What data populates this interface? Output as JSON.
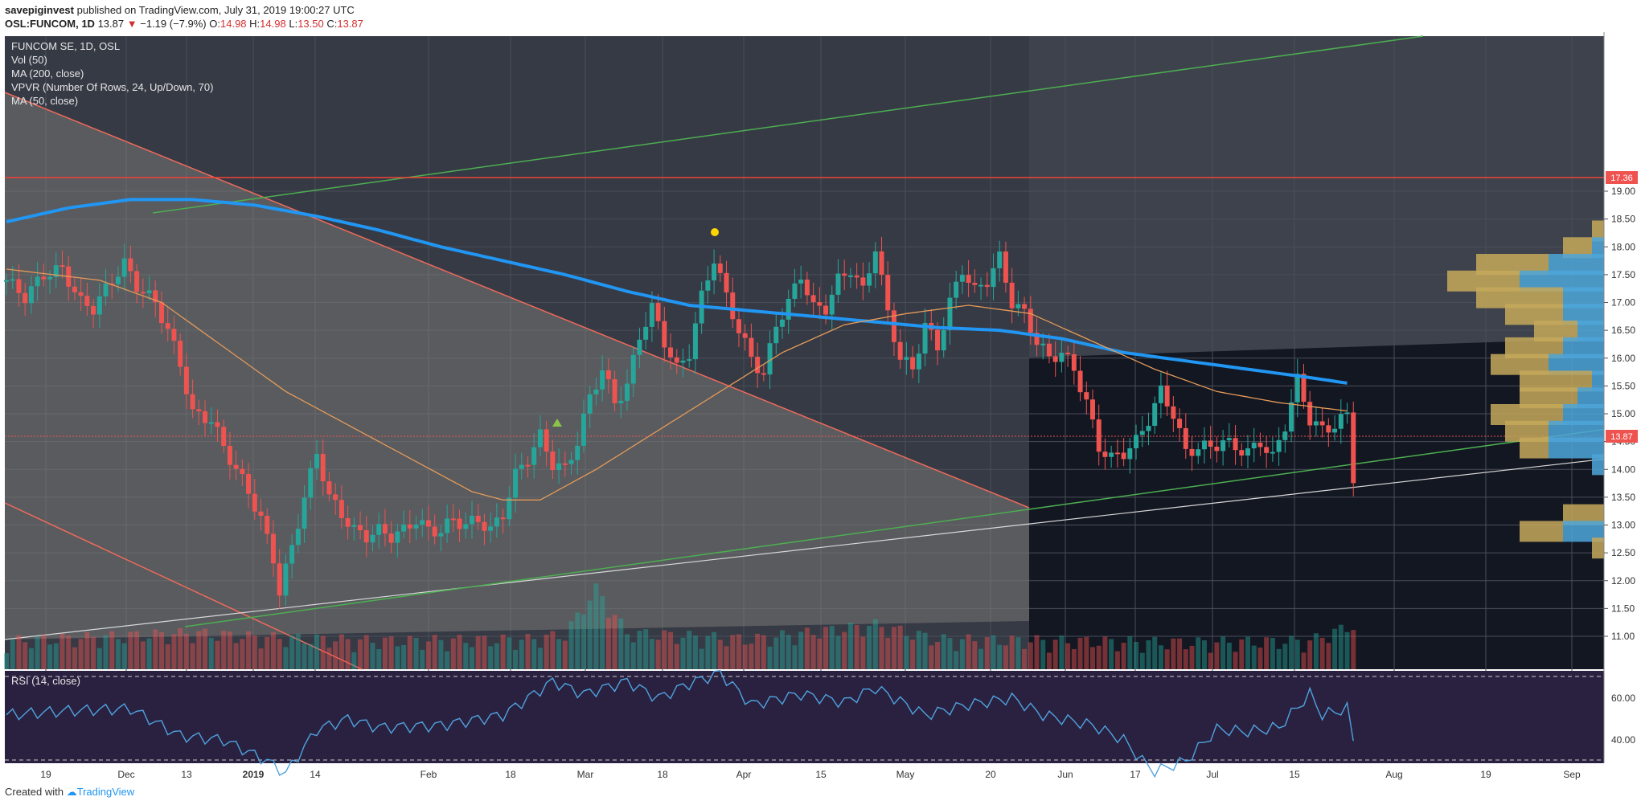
{
  "header": {
    "author": "savepiginvest",
    "published": "published on TradingView.com, July 31, 2019 19:00:27 UTC",
    "symbol": "OSL:FUNCOM, 1D",
    "last": "13.87",
    "change": "−1.19 (−7.9%)",
    "o_label": "O:",
    "o_val": "14.98",
    "h_label": "H:",
    "h_val": "14.98",
    "l_label": "L:",
    "l_val": "13.50",
    "c_label": "C:",
    "c_val": "13.87"
  },
  "legend": [
    "FUNCOM SE, 1D, OSL",
    "Vol (50)",
    "MA (200, close)",
    "VPVR (Number Of Rows, 24, Up/Down, 70)",
    "MA (50, close)"
  ],
  "rsi_label": "RSI (14, close)",
  "footer": {
    "created": "Created with",
    "brand": "TradingView"
  },
  "colors": {
    "background": "#363a45",
    "lower_background": "#131722",
    "rsi_background": "#2a2140",
    "up": "#26a69a",
    "down": "#ef5350",
    "ma200": "#2196f3",
    "ma50": "#e59a58",
    "trend": "#4caf50",
    "resistance": "#f44336",
    "vpvr_up": "#4da6d9",
    "vpvr_down": "#c6a85a"
  },
  "chart_data": {
    "type": "candlestick",
    "price_axis": {
      "ticks": [
        "19.00",
        "18.50",
        "18.00",
        "17.50",
        "17.00",
        "16.50",
        "16.00",
        "15.50",
        "15.00",
        "14.50",
        "14.00",
        "13.50",
        "13.00",
        "12.50",
        "12.00",
        "11.50",
        "11.00"
      ],
      "range": [
        10.75,
        19.3
      ]
    },
    "time_axis": {
      "labels": [
        "19",
        "Dec",
        "13",
        "2019",
        "14",
        "Feb",
        "18",
        "Mar",
        "18",
        "Apr",
        "15",
        "May",
        "20",
        "Jun",
        "17",
        "Jul",
        "15",
        "Aug",
        "19",
        "Sep"
      ]
    },
    "markers": {
      "resistance_level": "17.36",
      "last_price": "13.87"
    },
    "rsi_axis": {
      "ticks": [
        "60.00",
        "40.00"
      ],
      "range": [
        20,
        80
      ],
      "bands": [
        70,
        30
      ]
    },
    "ohlc_waypoints": [
      [
        0,
        17.4
      ],
      [
        3,
        17.1
      ],
      [
        6,
        17.5
      ],
      [
        9,
        17.6
      ],
      [
        12,
        17.0
      ],
      [
        14,
        16.9
      ],
      [
        17,
        17.4
      ],
      [
        19,
        17.7
      ],
      [
        21,
        17.3
      ],
      [
        24,
        17.0
      ],
      [
        26,
        16.5
      ],
      [
        28,
        15.9
      ],
      [
        30,
        15.0
      ],
      [
        33,
        14.9
      ],
      [
        35,
        14.4
      ],
      [
        37,
        14.0
      ],
      [
        39,
        13.6
      ],
      [
        41,
        13.1
      ],
      [
        43,
        12.4
      ],
      [
        44,
        11.8
      ],
      [
        46,
        12.6
      ],
      [
        48,
        13.5
      ],
      [
        50,
        14.3
      ],
      [
        52,
        13.5
      ],
      [
        54,
        13.2
      ],
      [
        56,
        12.9
      ],
      [
        58,
        12.8
      ],
      [
        60,
        12.9
      ],
      [
        62,
        12.8
      ],
      [
        64,
        12.9
      ],
      [
        66,
        13.1
      ],
      [
        68,
        12.9
      ],
      [
        70,
        12.9
      ],
      [
        72,
        13.1
      ],
      [
        74,
        13.0
      ],
      [
        76,
        13.1
      ],
      [
        78,
        12.9
      ],
      [
        80,
        13.2
      ],
      [
        82,
        13.9
      ],
      [
        84,
        14.2
      ],
      [
        86,
        14.6
      ],
      [
        88,
        14.1
      ],
      [
        90,
        14.0
      ],
      [
        92,
        14.5
      ],
      [
        94,
        15.3
      ],
      [
        96,
        15.8
      ],
      [
        98,
        15.2
      ],
      [
        100,
        15.5
      ],
      [
        102,
        16.4
      ],
      [
        104,
        16.9
      ],
      [
        106,
        16.3
      ],
      [
        108,
        15.8
      ],
      [
        110,
        16.1
      ],
      [
        112,
        17.1
      ],
      [
        114,
        17.8
      ],
      [
        116,
        17.1
      ],
      [
        118,
        16.5
      ],
      [
        120,
        16.0
      ],
      [
        122,
        15.7
      ],
      [
        124,
        16.6
      ],
      [
        126,
        17.0
      ],
      [
        128,
        17.5
      ],
      [
        130,
        16.9
      ],
      [
        132,
        16.9
      ],
      [
        134,
        17.4
      ],
      [
        136,
        17.6
      ],
      [
        138,
        17.2
      ],
      [
        140,
        18.0
      ],
      [
        142,
        16.8
      ],
      [
        144,
        16.0
      ],
      [
        146,
        15.8
      ],
      [
        148,
        16.6
      ],
      [
        150,
        16.2
      ],
      [
        152,
        17.0
      ],
      [
        154,
        17.6
      ],
      [
        156,
        17.2
      ],
      [
        158,
        17.4
      ],
      [
        160,
        17.8
      ],
      [
        162,
        17.0
      ],
      [
        164,
        16.8
      ],
      [
        166,
        16.3
      ],
      [
        168,
        16.0
      ],
      [
        170,
        16.1
      ],
      [
        172,
        15.8
      ],
      [
        174,
        15.2
      ],
      [
        176,
        14.4
      ],
      [
        178,
        14.2
      ],
      [
        180,
        14.3
      ],
      [
        182,
        14.5
      ],
      [
        184,
        14.9
      ],
      [
        186,
        15.4
      ],
      [
        188,
        15.0
      ],
      [
        190,
        14.3
      ],
      [
        192,
        14.4
      ],
      [
        194,
        14.4
      ],
      [
        196,
        14.5
      ],
      [
        198,
        14.4
      ],
      [
        200,
        14.3
      ],
      [
        202,
        14.5
      ],
      [
        204,
        14.2
      ],
      [
        206,
        14.8
      ],
      [
        208,
        15.6
      ],
      [
        210,
        14.9
      ],
      [
        212,
        14.7
      ],
      [
        214,
        14.8
      ],
      [
        216,
        14.98
      ],
      [
        217,
        13.87
      ]
    ],
    "ma200_waypoints": [
      [
        0,
        18.45
      ],
      [
        10,
        18.7
      ],
      [
        20,
        18.85
      ],
      [
        30,
        18.85
      ],
      [
        40,
        18.75
      ],
      [
        50,
        18.55
      ],
      [
        60,
        18.3
      ],
      [
        70,
        18.0
      ],
      [
        80,
        17.75
      ],
      [
        90,
        17.5
      ],
      [
        100,
        17.2
      ],
      [
        110,
        16.95
      ],
      [
        120,
        16.85
      ],
      [
        130,
        16.75
      ],
      [
        140,
        16.65
      ],
      [
        150,
        16.55
      ],
      [
        160,
        16.5
      ],
      [
        170,
        16.35
      ],
      [
        180,
        16.1
      ],
      [
        190,
        15.95
      ],
      [
        200,
        15.8
      ],
      [
        210,
        15.65
      ],
      [
        216,
        15.55
      ]
    ],
    "ma50_waypoints": [
      [
        0,
        17.6
      ],
      [
        15,
        17.4
      ],
      [
        25,
        17.0
      ],
      [
        35,
        16.2
      ],
      [
        45,
        15.4
      ],
      [
        55,
        14.8
      ],
      [
        65,
        14.2
      ],
      [
        75,
        13.6
      ],
      [
        80,
        13.45
      ],
      [
        86,
        13.45
      ],
      [
        95,
        14.0
      ],
      [
        105,
        14.7
      ],
      [
        115,
        15.4
      ],
      [
        125,
        16.1
      ],
      [
        135,
        16.6
      ],
      [
        145,
        16.8
      ],
      [
        155,
        16.95
      ],
      [
        165,
        16.8
      ],
      [
        175,
        16.3
      ],
      [
        185,
        15.8
      ],
      [
        195,
        15.4
      ],
      [
        205,
        15.2
      ],
      [
        216,
        15.05
      ]
    ],
    "vpvr_rows": [
      [
        18.6,
        0,
        1
      ],
      [
        18.3,
        1,
        2
      ],
      [
        18.0,
        2,
        3
      ],
      [
        17.7,
        5,
        6
      ],
      [
        17.4,
        5,
        8
      ],
      [
        17.1,
        6,
        5
      ],
      [
        16.8,
        4,
        5
      ],
      [
        16.5,
        3,
        4
      ],
      [
        16.2,
        4,
        5
      ],
      [
        15.9,
        4,
        6
      ],
      [
        15.6,
        5,
        3
      ],
      [
        15.3,
        4,
        4
      ],
      [
        15.0,
        5,
        5
      ],
      [
        14.7,
        3,
        6
      ],
      [
        14.4,
        2,
        6
      ],
      [
        14.1,
        0,
        3
      ],
      [
        13.8,
        0,
        1
      ],
      [
        13.5,
        1,
        1
      ],
      [
        13.2,
        3,
        2
      ],
      [
        12.9,
        3,
        5
      ],
      [
        12.6,
        1,
        2
      ],
      [
        12.3,
        0,
        1
      ],
      [
        12.0,
        0,
        1
      ],
      [
        11.7,
        0,
        1
      ]
    ],
    "volume_waypoints": [
      [
        0,
        20
      ],
      [
        30,
        30
      ],
      [
        40,
        25
      ],
      [
        60,
        20
      ],
      [
        84,
        22
      ],
      [
        90,
        28
      ],
      [
        95,
        85
      ],
      [
        100,
        30
      ],
      [
        120,
        22
      ],
      [
        140,
        40
      ],
      [
        150,
        22
      ],
      [
        170,
        20
      ],
      [
        190,
        18
      ],
      [
        210,
        20
      ],
      [
        217,
        40
      ]
    ],
    "rsi_waypoints": [
      [
        0,
        52
      ],
      [
        10,
        54
      ],
      [
        20,
        55
      ],
      [
        28,
        42
      ],
      [
        35,
        40
      ],
      [
        42,
        30
      ],
      [
        45,
        24
      ],
      [
        50,
        45
      ],
      [
        55,
        50
      ],
      [
        60,
        46
      ],
      [
        70,
        47
      ],
      [
        80,
        52
      ],
      [
        88,
        68
      ],
      [
        93,
        62
      ],
      [
        100,
        68
      ],
      [
        105,
        60
      ],
      [
        110,
        67
      ],
      [
        115,
        72
      ],
      [
        120,
        57
      ],
      [
        128,
        62
      ],
      [
        135,
        58
      ],
      [
        140,
        65
      ],
      [
        148,
        52
      ],
      [
        155,
        57
      ],
      [
        162,
        60
      ],
      [
        167,
        52
      ],
      [
        175,
        47
      ],
      [
        180,
        40
      ],
      [
        183,
        30
      ],
      [
        185,
        25
      ],
      [
        190,
        30
      ],
      [
        195,
        45
      ],
      [
        200,
        44
      ],
      [
        205,
        46
      ],
      [
        210,
        62
      ],
      [
        212,
        52
      ],
      [
        216,
        55
      ],
      [
        217,
        40
      ]
    ]
  }
}
